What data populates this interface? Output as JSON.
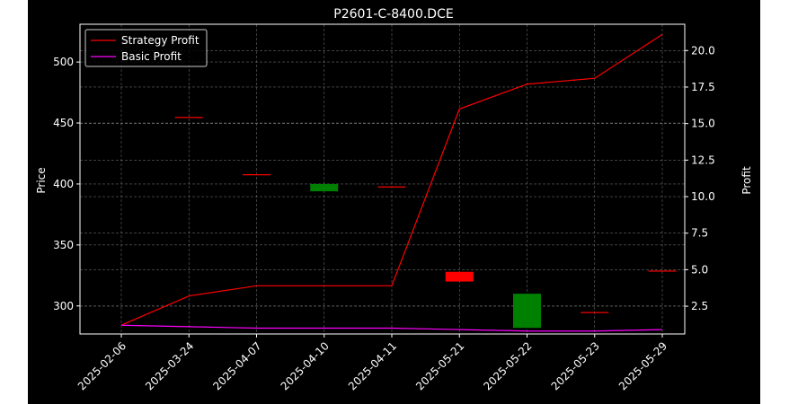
{
  "chart_data": {
    "type": "candlestick+line",
    "title": "P2601-C-8400.DCE",
    "xlabel": "",
    "ylabel": "Price",
    "y2label": "Profit",
    "categories": [
      "2025-02-06",
      "2025-03-24",
      "2025-04-07",
      "2025-04-10",
      "2025-04-11",
      "2025-05-21",
      "2025-05-22",
      "2025-05-23",
      "2025-05-29"
    ],
    "ylim": [
      277,
      531
    ],
    "y2lim": [
      0.6,
      21.8
    ],
    "yticks": [
      300,
      350,
      400,
      450,
      500
    ],
    "y2ticks": [
      2.5,
      5.0,
      7.5,
      10.0,
      12.5,
      15.0,
      17.5,
      20.0
    ],
    "grid": true,
    "legend_position": "top-left",
    "candles": [
      {
        "date": "2025-03-24",
        "open": 455,
        "close": 455,
        "color": "#ff0000"
      },
      {
        "date": "2025-04-07",
        "open": 408,
        "close": 408,
        "color": "#ff0000"
      },
      {
        "date": "2025-04-10",
        "open": 394,
        "close": 400,
        "color": "#008000"
      },
      {
        "date": "2025-04-11",
        "open": 398,
        "close": 398,
        "color": "#ff0000"
      },
      {
        "date": "2025-05-21",
        "open": 328,
        "close": 320,
        "color": "#ff0000"
      },
      {
        "date": "2025-05-22",
        "open": 282,
        "close": 310,
        "color": "#008000"
      },
      {
        "date": "2025-05-23",
        "open": 295,
        "close": 295,
        "color": "#ff0000"
      },
      {
        "date": "2025-05-29",
        "open": 329,
        "close": 329,
        "color": "#ff0000"
      }
    ],
    "series": [
      {
        "name": "Strategy Profit",
        "color": "#ff0000",
        "axis": "right",
        "values": [
          1.2,
          3.2,
          3.9,
          3.9,
          3.9,
          16.0,
          17.7,
          18.1,
          21.1
        ]
      },
      {
        "name": "Basic Profit",
        "color": "#ff00ff",
        "axis": "right",
        "values": [
          1.2,
          1.1,
          1.0,
          1.0,
          1.0,
          0.9,
          0.8,
          0.8,
          0.9
        ]
      }
    ]
  }
}
